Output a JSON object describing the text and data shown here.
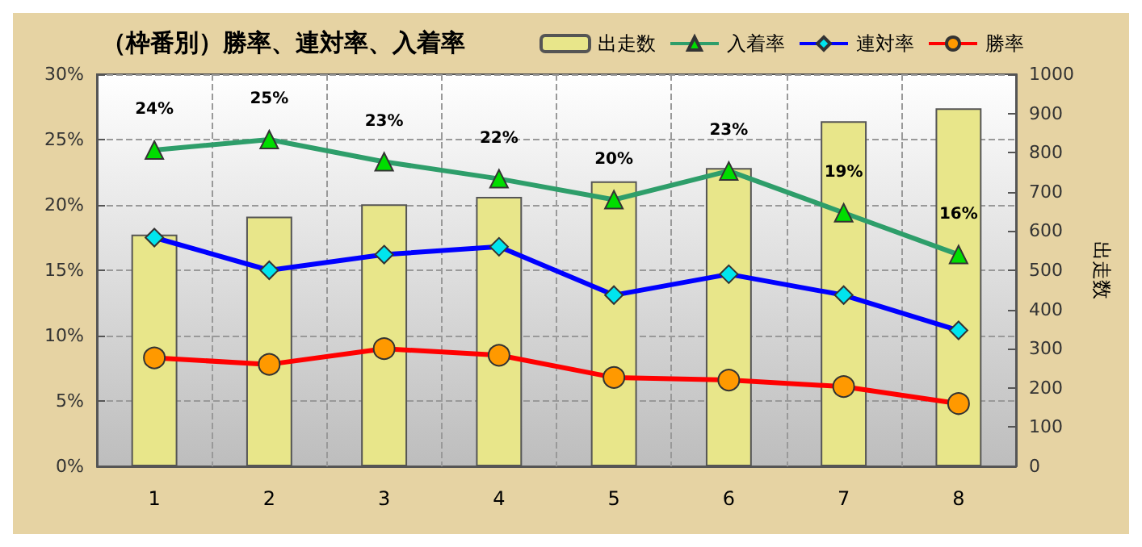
{
  "chart_data": {
    "type": "line",
    "title": "（枠番別）勝率、連対率、入着率",
    "y2label": "出走数",
    "categories": [
      "1",
      "2",
      "3",
      "4",
      "5",
      "6",
      "7",
      "8"
    ],
    "series": [
      {
        "name": "出走数",
        "type": "bar",
        "axis": "y2",
        "color": "#e8e68a",
        "values": [
          591,
          637,
          668,
          687,
          727,
          761,
          880,
          913
        ]
      },
      {
        "name": "入着率",
        "color": "#2e9e6a",
        "marker": "triangle",
        "values": [
          24.2,
          25.0,
          23.3,
          22.0,
          20.4,
          22.6,
          19.4,
          16.2
        ],
        "value_labels": [
          "24%",
          "25%",
          "23%",
          "22%",
          "20%",
          "23%",
          "19%",
          "16%"
        ]
      },
      {
        "name": "連対率",
        "color": "#0000ff",
        "marker": "diamond",
        "values": [
          17.5,
          15.0,
          16.2,
          16.8,
          13.1,
          14.7,
          13.1,
          10.4
        ]
      },
      {
        "name": "勝率",
        "color": "#ff0000",
        "marker": "circle",
        "values": [
          8.3,
          7.8,
          9.0,
          8.5,
          6.8,
          6.6,
          6.1,
          4.8
        ]
      }
    ],
    "ylim": [
      0,
      30
    ],
    "yticks": [
      {
        "value": 0,
        "label": "0%"
      },
      {
        "value": 5,
        "label": "5%"
      },
      {
        "value": 10,
        "label": "10%"
      },
      {
        "value": 15,
        "label": "15%"
      },
      {
        "value": 20,
        "label": "20%"
      },
      {
        "value": 25,
        "label": "25%"
      },
      {
        "value": 30,
        "label": "30%"
      }
    ],
    "y2lim": [
      0,
      1000
    ],
    "y2ticks": [
      0,
      100,
      200,
      300,
      400,
      500,
      600,
      700,
      800,
      900,
      1000
    ],
    "grid": true,
    "legend": "top right"
  }
}
